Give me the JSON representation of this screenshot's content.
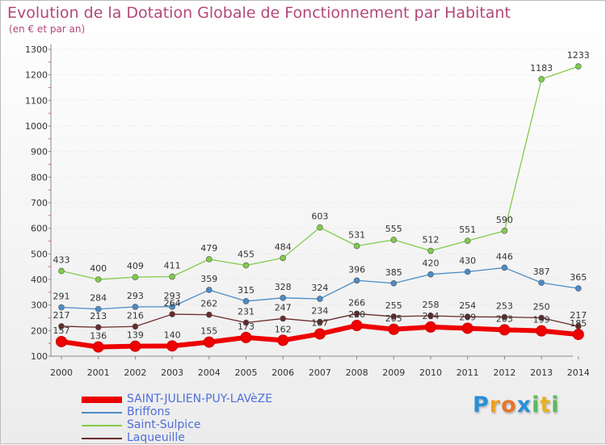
{
  "header": {
    "title": "Evolution de la Dotation Globale de Fonctionnement par Habitant",
    "subtitle": "(en € et par an)"
  },
  "colors": {
    "title": "#b3487a",
    "axis": "#888888",
    "grid": "#dddddd",
    "legend_text": "#4f6edb"
  },
  "logo": {
    "letters": [
      "P",
      "r",
      "o",
      "x",
      "i",
      "t",
      "i"
    ],
    "colors": [
      "#2a8fd6",
      "#f0a020",
      "#e8742b",
      "#2a8fd6",
      "#5cb85c",
      "#e8b020",
      "#5cb85c"
    ]
  },
  "chart_data": {
    "type": "line",
    "x": [
      "2000",
      "2001",
      "2002",
      "2003",
      "2004",
      "2005",
      "2006",
      "2007",
      "2008",
      "2009",
      "2010",
      "2011",
      "2012",
      "2013",
      "2014"
    ],
    "ylim": [
      100,
      1300
    ],
    "yticks": [
      100,
      200,
      300,
      400,
      500,
      600,
      700,
      800,
      900,
      1000,
      1100,
      1200,
      1300
    ],
    "grid": true,
    "legend_position": "bottom-left",
    "series": [
      {
        "name": "SAINT-JULIEN-PUY-LAVèZE",
        "color": "#ee0000",
        "values": [
          157,
          136,
          139,
          140,
          155,
          173,
          162,
          187,
          220,
          205,
          214,
          209,
          203,
          199,
          185
        ]
      },
      {
        "name": "Briffons",
        "color": "#4a8cc7",
        "values": [
          291,
          284,
          293,
          293,
          359,
          315,
          328,
          324,
          396,
          385,
          420,
          430,
          446,
          387,
          365
        ]
      },
      {
        "name": "Saint-Sulpice",
        "color": "#80cc4a",
        "values": [
          433,
          400,
          409,
          411,
          479,
          455,
          484,
          603,
          531,
          555,
          512,
          551,
          590,
          1183,
          1233
        ]
      },
      {
        "name": "Laqueuille",
        "color": "#6a2a2a",
        "values": [
          217,
          213,
          216,
          264,
          262,
          231,
          247,
          234,
          266,
          255,
          258,
          254,
          253,
          250,
          217
        ]
      }
    ]
  }
}
